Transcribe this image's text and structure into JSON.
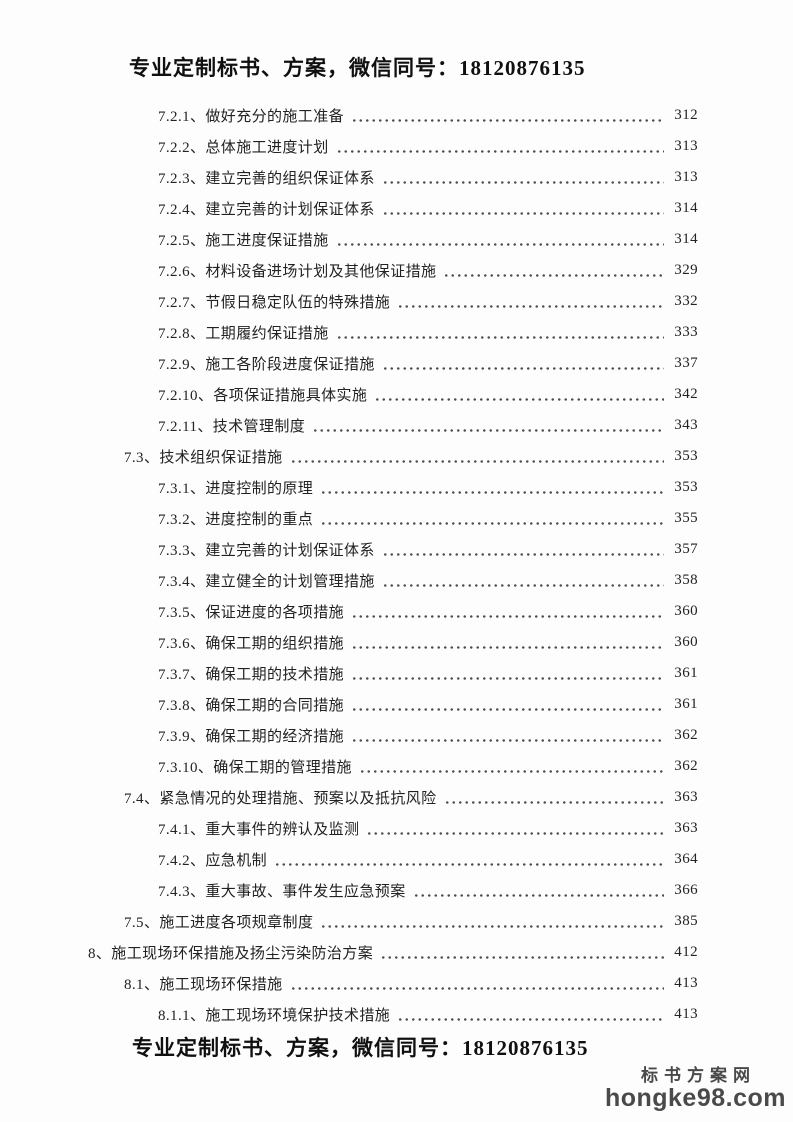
{
  "page": {
    "header_note": "专业定制标书、方案，微信同号：18120876135",
    "footer_note": "专业定制标书、方案，微信同号：18120876135"
  },
  "toc": {
    "entries": [
      {
        "level": 3,
        "label": "7.2.1、做好充分的施工准备",
        "page": "312"
      },
      {
        "level": 3,
        "label": "7.2.2、总体施工进度计划",
        "page": "313"
      },
      {
        "level": 3,
        "label": "7.2.3、建立完善的组织保证体系",
        "page": "313"
      },
      {
        "level": 3,
        "label": "7.2.4、建立完善的计划保证体系",
        "page": "314"
      },
      {
        "level": 3,
        "label": "7.2.5、施工进度保证措施",
        "page": "314"
      },
      {
        "level": 3,
        "label": "7.2.6、材料设备进场计划及其他保证措施",
        "page": "329"
      },
      {
        "level": 3,
        "label": "7.2.7、节假日稳定队伍的特殊措施",
        "page": "332"
      },
      {
        "level": 3,
        "label": "7.2.8、工期履约保证措施",
        "page": "333"
      },
      {
        "level": 3,
        "label": "7.2.9、施工各阶段进度保证措施",
        "page": "337"
      },
      {
        "level": 3,
        "label": "7.2.10、各项保证措施具体实施",
        "page": "342"
      },
      {
        "level": 3,
        "label": "7.2.11、技术管理制度",
        "page": "343"
      },
      {
        "level": 2,
        "label": "7.3、技术组织保证措施",
        "page": "353"
      },
      {
        "level": 3,
        "label": "7.3.1、进度控制的原理",
        "page": "353"
      },
      {
        "level": 3,
        "label": "7.3.2、进度控制的重点",
        "page": "355"
      },
      {
        "level": 3,
        "label": "7.3.3、建立完善的计划保证体系",
        "page": "357"
      },
      {
        "level": 3,
        "label": "7.3.4、建立健全的计划管理措施",
        "page": "358"
      },
      {
        "level": 3,
        "label": "7.3.5、保证进度的各项措施",
        "page": "360"
      },
      {
        "level": 3,
        "label": "7.3.6、确保工期的组织措施",
        "page": "360"
      },
      {
        "level": 3,
        "label": "7.3.7、确保工期的技术措施",
        "page": "361"
      },
      {
        "level": 3,
        "label": "7.3.8、确保工期的合同措施",
        "page": "361"
      },
      {
        "level": 3,
        "label": "7.3.9、确保工期的经济措施",
        "page": "362"
      },
      {
        "level": 3,
        "label": "7.3.10、确保工期的管理措施",
        "page": "362"
      },
      {
        "level": 2,
        "label": "7.4、紧急情况的处理措施、预案以及抵抗风险",
        "page": "363"
      },
      {
        "level": 3,
        "label": "7.4.1、重大事件的辨认及监测",
        "page": "363"
      },
      {
        "level": 3,
        "label": "7.4.2、应急机制",
        "page": "364"
      },
      {
        "level": 3,
        "label": "7.4.3、重大事故、事件发生应急预案",
        "page": "366"
      },
      {
        "level": 2,
        "label": "7.5、施工进度各项规章制度",
        "page": "385"
      },
      {
        "level": 1,
        "label": "8、施工现场环保措施及扬尘污染防治方案",
        "page": "412"
      },
      {
        "level": 2,
        "label": "8.1、施工现场环保措施",
        "page": "413"
      },
      {
        "level": 3,
        "label": "8.1.1、施工现场环境保护技术措施",
        "page": "413"
      }
    ]
  },
  "watermark": {
    "site_name": "标书方案网",
    "site_url": "hongke98.com"
  },
  "colors": {
    "text": "#1f1f1f",
    "watermark": "#4a4a4a",
    "background": "#fdfdfd"
  }
}
